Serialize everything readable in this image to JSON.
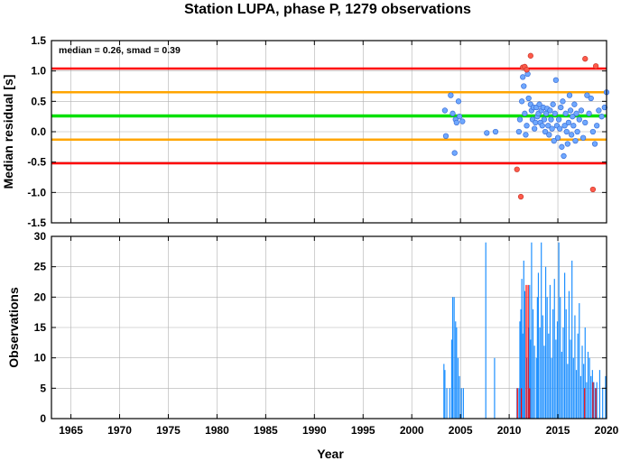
{
  "title": "Station LUPA, phase P, 1279 observations",
  "xlabel": "Year",
  "colors": {
    "median_line": "#00e000",
    "smad_line": "#ffa500",
    "limit_line": "#ff0000",
    "point_fill": "#6fa8ff",
    "outlier_fill": "#ff5a4a",
    "bar": "#1e90ff",
    "bar_outlier": "#ff0000",
    "grid": "#b0b0b0"
  },
  "chart_data": [
    {
      "type": "scatter",
      "ylabel": "Median residual [s]",
      "annotation": "median = 0.26, smad = 0.39",
      "xlim": [
        1963,
        2020
      ],
      "ylim": [
        -1.5,
        1.5
      ],
      "x_ticks": [
        1965,
        1970,
        1975,
        1980,
        1985,
        1990,
        1995,
        2000,
        2005,
        2010,
        2015,
        2020
      ],
      "y_ticks": [
        -1.5,
        -1.0,
        -0.5,
        0.0,
        0.5,
        1.0,
        1.5
      ],
      "y_tick_labels": [
        "-1.5",
        "-1.0",
        "-0.5",
        "0.0",
        "0.5",
        "1.0",
        "1.5"
      ],
      "grid": true,
      "hlines": [
        {
          "y": 1.04,
          "kind": "limit"
        },
        {
          "y": 0.65,
          "kind": "smad"
        },
        {
          "y": 0.26,
          "kind": "median"
        },
        {
          "y": -0.13,
          "kind": "smad"
        },
        {
          "y": -0.52,
          "kind": "limit"
        }
      ],
      "points": [
        [
          2003.4,
          0.35
        ],
        [
          2003.5,
          -0.07
        ],
        [
          2004.0,
          0.6
        ],
        [
          2004.2,
          0.3
        ],
        [
          2004.4,
          -0.35
        ],
        [
          2004.5,
          0.2
        ],
        [
          2004.6,
          0.15
        ],
        [
          2004.8,
          0.5
        ],
        [
          2004.9,
          0.25
        ],
        [
          2005.2,
          0.17
        ],
        [
          2007.7,
          -0.02
        ],
        [
          2008.6,
          0.0
        ],
        [
          2011.0,
          0.0
        ],
        [
          2011.1,
          0.2
        ],
        [
          2011.3,
          0.5
        ],
        [
          2011.4,
          0.9
        ],
        [
          2011.5,
          0.75
        ],
        [
          2011.6,
          0.3
        ],
        [
          2011.7,
          -0.05
        ],
        [
          2011.8,
          0.1
        ],
        [
          2011.9,
          0.95
        ],
        [
          2012.0,
          0.55
        ],
        [
          2012.2,
          0.45
        ],
        [
          2012.3,
          0.35
        ],
        [
          2012.4,
          0.2
        ],
        [
          2012.5,
          0.4
        ],
        [
          2012.6,
          0.05
        ],
        [
          2012.7,
          0.15
        ],
        [
          2012.8,
          0.4
        ],
        [
          2012.9,
          0.25
        ],
        [
          2013.0,
          0.3
        ],
        [
          2013.1,
          0.45
        ],
        [
          2013.2,
          0.15
        ],
        [
          2013.3,
          0.35
        ],
        [
          2013.4,
          0.1
        ],
        [
          2013.5,
          0.4
        ],
        [
          2013.6,
          0.2
        ],
        [
          2013.7,
          0.0
        ],
        [
          2013.8,
          0.3
        ],
        [
          2013.9,
          0.38
        ],
        [
          2014.0,
          0.1
        ],
        [
          2014.1,
          -0.05
        ],
        [
          2014.2,
          0.35
        ],
        [
          2014.3,
          0.2
        ],
        [
          2014.4,
          0.05
        ],
        [
          2014.5,
          0.45
        ],
        [
          2014.6,
          -0.15
        ],
        [
          2014.7,
          0.3
        ],
        [
          2014.8,
          0.85
        ],
        [
          2014.9,
          0.1
        ],
        [
          2015.0,
          -0.1
        ],
        [
          2015.1,
          0.2
        ],
        [
          2015.2,
          0.05
        ],
        [
          2015.3,
          0.4
        ],
        [
          2015.4,
          -0.25
        ],
        [
          2015.5,
          0.5
        ],
        [
          2015.6,
          -0.4
        ],
        [
          2015.7,
          0.1
        ],
        [
          2015.8,
          0.3
        ],
        [
          2015.9,
          0.0
        ],
        [
          2016.0,
          -0.2
        ],
        [
          2016.1,
          0.15
        ],
        [
          2016.2,
          0.6
        ],
        [
          2016.3,
          0.35
        ],
        [
          2016.4,
          -0.05
        ],
        [
          2016.5,
          0.25
        ],
        [
          2016.6,
          0.1
        ],
        [
          2016.7,
          0.45
        ],
        [
          2016.8,
          -0.15
        ],
        [
          2016.9,
          0.3
        ],
        [
          2017.0,
          0.0
        ],
        [
          2017.2,
          0.2
        ],
        [
          2017.4,
          0.35
        ],
        [
          2017.6,
          -0.1
        ],
        [
          2017.8,
          0.15
        ],
        [
          2018.0,
          0.6
        ],
        [
          2018.2,
          0.3
        ],
        [
          2018.4,
          0.55
        ],
        [
          2018.6,
          0.0
        ],
        [
          2018.8,
          -0.2
        ],
        [
          2019.0,
          0.1
        ],
        [
          2019.2,
          0.35
        ],
        [
          2019.5,
          0.25
        ],
        [
          2019.8,
          0.4
        ],
        [
          2020.0,
          0.65
        ]
      ],
      "outliers": [
        [
          2010.8,
          -0.62
        ],
        [
          2011.2,
          -1.07
        ],
        [
          2011.4,
          1.06
        ],
        [
          2011.6,
          1.07
        ],
        [
          2011.8,
          1.02
        ],
        [
          2012.2,
          1.25
        ],
        [
          2017.8,
          1.2
        ],
        [
          2018.6,
          -0.95
        ],
        [
          2018.9,
          1.08
        ]
      ]
    },
    {
      "type": "bar",
      "ylabel": "Observations",
      "xlim": [
        1963,
        2020
      ],
      "ylim": [
        0,
        30
      ],
      "x_ticks": [
        1965,
        1970,
        1975,
        1980,
        1985,
        1990,
        1995,
        2000,
        2005,
        2010,
        2015,
        2020
      ],
      "x_tick_labels": [
        "1965",
        "1970",
        "1975",
        "1980",
        "1985",
        "1990",
        "1995",
        "2000",
        "2005",
        "2010",
        "2015",
        "2020"
      ],
      "y_ticks": [
        0,
        5,
        10,
        15,
        20,
        25,
        30
      ],
      "grid": true,
      "bars": [
        [
          2003.3,
          9
        ],
        [
          2003.4,
          8
        ],
        [
          2003.6,
          5
        ],
        [
          2003.9,
          5
        ],
        [
          2004.1,
          13
        ],
        [
          2004.2,
          20
        ],
        [
          2004.35,
          20
        ],
        [
          2004.5,
          16
        ],
        [
          2004.6,
          15
        ],
        [
          2004.75,
          10
        ],
        [
          2004.9,
          7
        ],
        [
          2005.1,
          5
        ],
        [
          2005.3,
          5
        ],
        [
          2007.6,
          29
        ],
        [
          2008.5,
          10
        ],
        [
          2010.8,
          5
        ],
        [
          2011.0,
          5
        ],
        [
          2011.1,
          16
        ],
        [
          2011.2,
          18
        ],
        [
          2011.3,
          23
        ],
        [
          2011.4,
          14
        ],
        [
          2011.5,
          26
        ],
        [
          2011.6,
          21
        ],
        [
          2011.8,
          10
        ],
        [
          2012.0,
          15
        ],
        [
          2012.1,
          22
        ],
        [
          2012.2,
          13
        ],
        [
          2012.3,
          29
        ],
        [
          2012.45,
          18
        ],
        [
          2012.6,
          12
        ],
        [
          2012.8,
          10
        ],
        [
          2012.9,
          20
        ],
        [
          2013.0,
          24
        ],
        [
          2013.15,
          15
        ],
        [
          2013.3,
          29
        ],
        [
          2013.45,
          17
        ],
        [
          2013.6,
          12
        ],
        [
          2013.75,
          25
        ],
        [
          2013.9,
          20
        ],
        [
          2014.05,
          14
        ],
        [
          2014.2,
          22
        ],
        [
          2014.35,
          10
        ],
        [
          2014.5,
          18
        ],
        [
          2014.65,
          23
        ],
        [
          2014.8,
          13
        ],
        [
          2014.95,
          16
        ],
        [
          2015.1,
          29
        ],
        [
          2015.25,
          20
        ],
        [
          2015.4,
          11
        ],
        [
          2015.55,
          15
        ],
        [
          2015.7,
          24
        ],
        [
          2015.85,
          18
        ],
        [
          2016.0,
          9
        ],
        [
          2016.15,
          21
        ],
        [
          2016.3,
          13
        ],
        [
          2016.45,
          26
        ],
        [
          2016.6,
          10
        ],
        [
          2016.75,
          17
        ],
        [
          2016.9,
          8
        ],
        [
          2017.05,
          14
        ],
        [
          2017.2,
          19
        ],
        [
          2017.35,
          7
        ],
        [
          2017.5,
          12
        ],
        [
          2017.65,
          9
        ],
        [
          2017.8,
          15
        ],
        [
          2017.95,
          6
        ],
        [
          2018.1,
          11
        ],
        [
          2018.25,
          10
        ],
        [
          2018.4,
          7
        ],
        [
          2018.55,
          8
        ],
        [
          2018.7,
          6
        ],
        [
          2018.85,
          5
        ],
        [
          2019.0,
          6
        ],
        [
          2019.3,
          8
        ],
        [
          2019.6,
          5
        ],
        [
          2019.9,
          7
        ]
      ],
      "outlier_bars": [
        [
          2010.85,
          5
        ],
        [
          2011.25,
          5
        ],
        [
          2011.75,
          22
        ],
        [
          2011.95,
          22
        ],
        [
          2012.1,
          5
        ],
        [
          2017.75,
          5
        ],
        [
          2018.6,
          6
        ],
        [
          2018.9,
          5
        ]
      ]
    }
  ]
}
